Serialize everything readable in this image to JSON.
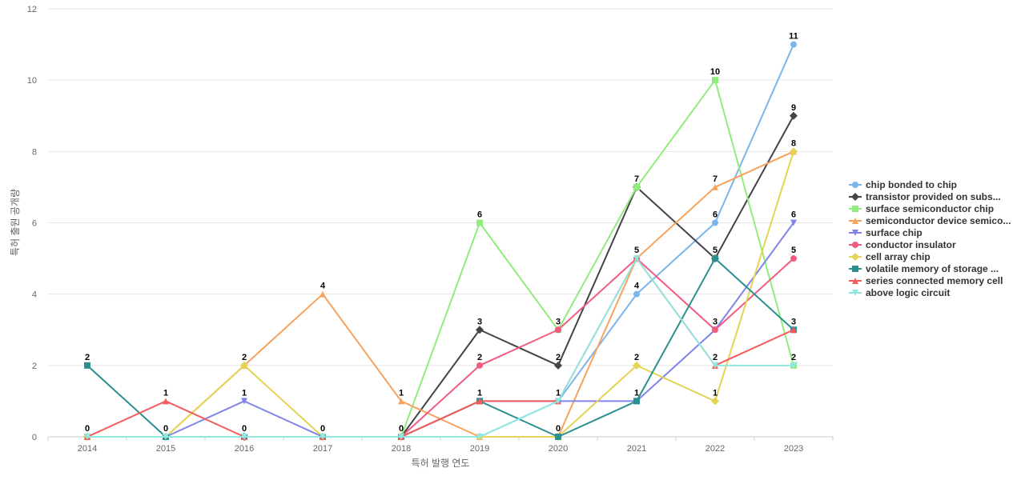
{
  "chart_data": {
    "type": "line",
    "xlabel": "특허 발행 연도",
    "ylabel": "특허 출원 공개량",
    "ylim": [
      0,
      12
    ],
    "yticks": [
      0,
      2,
      4,
      6,
      8,
      10,
      12
    ],
    "grid": "horizontal",
    "legend_position": "right",
    "x": [
      "2014",
      "2015",
      "2016",
      "2017",
      "2018",
      "2019",
      "2020",
      "2021",
      "2022",
      "2023"
    ],
    "series": [
      {
        "name": "chip bonded to chip",
        "color": "#7cb5ec",
        "marker": "circle",
        "values": [
          0,
          0,
          0,
          0,
          0,
          0,
          1,
          4,
          6,
          11
        ],
        "labels": [
          null,
          null,
          null,
          null,
          null,
          null,
          null,
          4,
          6,
          11
        ]
      },
      {
        "name": "transistor provided on subs...",
        "color": "#434348",
        "marker": "diamond",
        "values": [
          0,
          0,
          0,
          0,
          0,
          3,
          2,
          7,
          5,
          9
        ],
        "labels": [
          null,
          null,
          null,
          null,
          null,
          3,
          2,
          null,
          null,
          9
        ]
      },
      {
        "name": "surface semiconductor chip",
        "color": "#90ed7d",
        "marker": "square",
        "values": [
          0,
          0,
          0,
          0,
          0,
          6,
          3,
          7,
          10,
          2
        ],
        "labels": [
          null,
          null,
          null,
          null,
          null,
          6,
          3,
          7,
          10,
          2
        ]
      },
      {
        "name": "semiconductor device semico...",
        "color": "#f7a35c",
        "marker": "triangle",
        "values": [
          0,
          0,
          2,
          4,
          1,
          0,
          0,
          5,
          7,
          8
        ],
        "labels": [
          null,
          null,
          null,
          4,
          1,
          null,
          null,
          null,
          7,
          null
        ]
      },
      {
        "name": "surface chip",
        "color": "#8085e9",
        "marker": "triangle-down",
        "values": [
          0,
          0,
          1,
          0,
          0,
          1,
          1,
          1,
          3,
          6
        ],
        "labels": [
          null,
          null,
          1,
          null,
          null,
          null,
          null,
          null,
          null,
          6
        ]
      },
      {
        "name": "conductor insulator",
        "color": "#f15c80",
        "marker": "circle",
        "values": [
          0,
          0,
          0,
          0,
          0,
          2,
          3,
          5,
          3,
          5
        ],
        "labels": [
          null,
          null,
          null,
          null,
          null,
          2,
          null,
          5,
          3,
          5
        ]
      },
      {
        "name": "cell array chip",
        "color": "#e4d354",
        "marker": "diamond",
        "values": [
          0,
          0,
          2,
          0,
          0,
          0,
          0,
          2,
          1,
          8
        ],
        "labels": [
          null,
          null,
          2,
          null,
          null,
          null,
          null,
          2,
          1,
          8
        ]
      },
      {
        "name": "volatile memory of storage ...",
        "color": "#2b908f",
        "marker": "square",
        "values": [
          2,
          0,
          0,
          0,
          0,
          1,
          0,
          1,
          5,
          3
        ],
        "labels": [
          2,
          0,
          0,
          0,
          0,
          1,
          0,
          1,
          5,
          3
        ]
      },
      {
        "name": "series connected memory cell",
        "color": "#f45b5b",
        "marker": "triangle",
        "values": [
          0,
          1,
          0,
          0,
          0,
          1,
          1,
          5,
          2,
          3
        ],
        "labels": [
          0,
          1,
          null,
          null,
          null,
          null,
          null,
          null,
          null,
          null
        ]
      },
      {
        "name": "above logic circuit",
        "color": "#91e8e1",
        "marker": "triangle-down",
        "values": [
          0,
          0,
          0,
          0,
          0,
          0,
          1,
          5,
          2,
          2
        ],
        "labels": [
          null,
          null,
          null,
          null,
          null,
          null,
          1,
          null,
          2,
          null
        ]
      }
    ]
  }
}
